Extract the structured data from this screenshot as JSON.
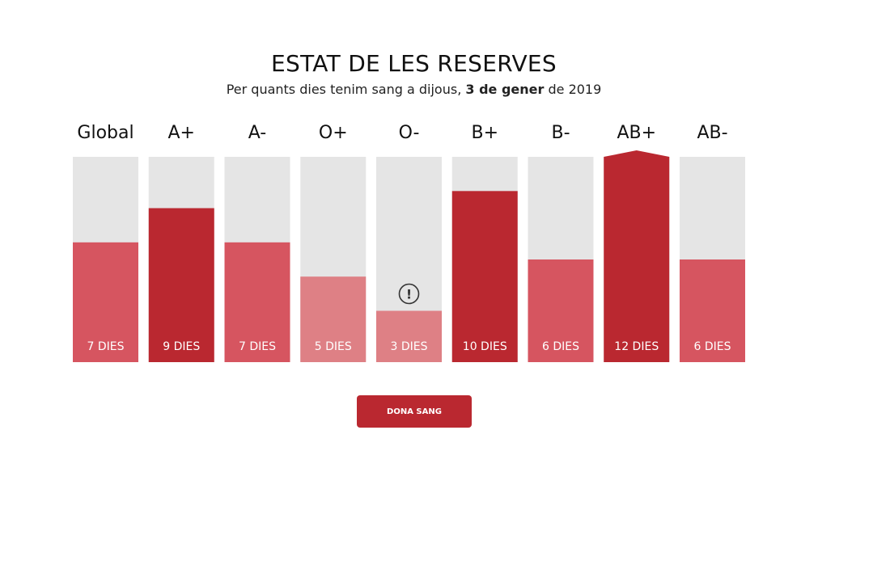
{
  "header": {
    "title": "ESTAT DE LES RESERVES",
    "subtitle_prefix": "Per quants dies tenim sang a dijous, ",
    "subtitle_bold": "3 de gener",
    "subtitle_suffix": " de 2019"
  },
  "cta": {
    "label": "DONA SANG"
  },
  "colors": {
    "track": "#e5e5e5",
    "high": "#ba2830",
    "medium": "#d65560",
    "low": "#de8085",
    "icon": "#333333"
  },
  "chart_data": {
    "type": "bar",
    "categories": [
      "Global",
      "A+",
      "A-",
      "O+",
      "O-",
      "B+",
      "B-",
      "AB+",
      "AB-"
    ],
    "values": [
      7,
      9,
      7,
      5,
      3,
      10,
      6,
      12,
      6
    ],
    "value_labels": [
      "7 DIES",
      "9 DIES",
      "7 DIES",
      "5 DIES",
      "3 DIES",
      "10 DIES",
      "6 DIES",
      "12 DIES",
      "6 DIES"
    ],
    "levels": [
      "medium",
      "high",
      "medium",
      "low",
      "low",
      "high",
      "medium",
      "high",
      "medium"
    ],
    "alerts": [
      false,
      false,
      false,
      false,
      true,
      false,
      false,
      false,
      false
    ],
    "overflow": [
      false,
      false,
      false,
      false,
      false,
      false,
      false,
      true,
      false
    ],
    "ylim": [
      0,
      12
    ]
  }
}
